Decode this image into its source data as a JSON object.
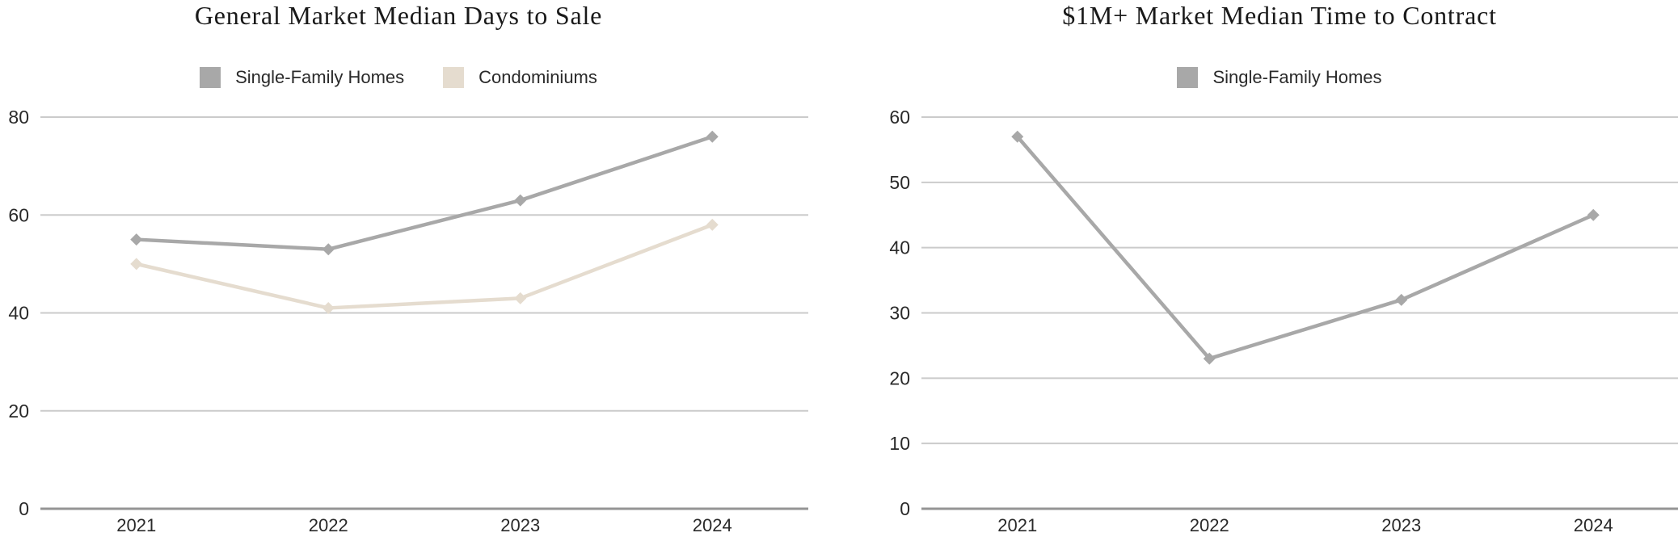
{
  "chart_data": [
    {
      "type": "line",
      "title": "General Market Median Days to Sale",
      "x": [
        "2021",
        "2022",
        "2023",
        "2024"
      ],
      "series": [
        {
          "name": "Single-Family Homes",
          "color": "#a8a8a8",
          "values": [
            55,
            53,
            63,
            76
          ]
        },
        {
          "name": "Condominiums",
          "color": "#e5dccf",
          "values": [
            50,
            41,
            43,
            58
          ]
        }
      ],
      "xlabel": "",
      "ylabel": "",
      "ylim": [
        0,
        80
      ],
      "yticks": [
        0,
        20,
        40,
        60,
        80
      ],
      "grid": true,
      "legend_position": "top-center",
      "marker": "diamond"
    },
    {
      "type": "line",
      "title": "$1M+ Market Median Time to Contract",
      "x": [
        "2021",
        "2022",
        "2023",
        "2024"
      ],
      "series": [
        {
          "name": "Single-Family Homes",
          "color": "#a8a8a8",
          "values": [
            57,
            23,
            32,
            45
          ]
        }
      ],
      "xlabel": "",
      "ylabel": "",
      "ylim": [
        0,
        60
      ],
      "yticks": [
        0,
        10,
        20,
        30,
        40,
        50,
        60
      ],
      "grid": true,
      "legend_position": "top-center",
      "marker": "diamond"
    }
  ],
  "colors": {
    "background": "#ffffff",
    "gridline": "#cbcbcb",
    "axis_line": "#949494",
    "title_text": "#191919",
    "tick_text": "#2a2a2a",
    "legend_text": "#2a2a2a"
  }
}
